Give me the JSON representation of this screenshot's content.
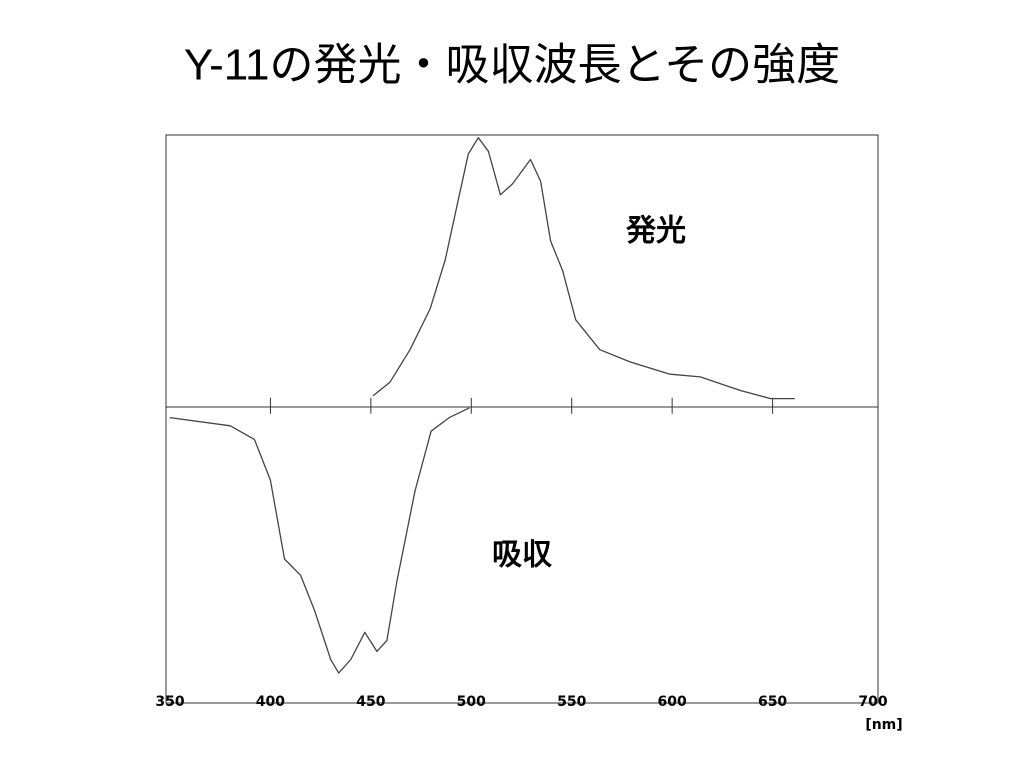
{
  "chart_data": {
    "type": "line",
    "title": "Y-11の発光・吸収波長とその強度",
    "x_label": "[nm]",
    "xlim": [
      350,
      700
    ],
    "xticks": [
      350,
      400,
      450,
      500,
      550,
      600,
      650,
      700
    ],
    "ylim": [
      -1.09,
      1
    ],
    "series": [
      {
        "name": "発光",
        "color": "#444444",
        "x": [
          451,
          459.5,
          469.5,
          479.5,
          487,
          493.5,
          498.5,
          503.5,
          508.5,
          514.5,
          520.5,
          529.5,
          534.5,
          539.5,
          545.5,
          552,
          564,
          579,
          599,
          614,
          634,
          649,
          661
        ],
        "values": [
          0.04,
          0.09,
          0.21,
          0.36,
          0.54,
          0.76,
          0.93,
          0.99,
          0.94,
          0.78,
          0.82,
          0.91,
          0.83,
          0.61,
          0.5,
          0.32,
          0.21,
          0.165,
          0.12,
          0.11,
          0.06,
          0.03,
          0.03
        ]
      },
      {
        "name": "吸収",
        "color": "#444444",
        "x": [
          350,
          380,
          392,
          400,
          407,
          415,
          422,
          430,
          434,
          440,
          447,
          453,
          458,
          463,
          472,
          480,
          489,
          499
        ],
        "values": [
          -0.04,
          -0.07,
          -0.12,
          -0.27,
          -0.56,
          -0.62,
          -0.75,
          -0.93,
          -0.98,
          -0.93,
          -0.83,
          -0.9,
          -0.86,
          -0.64,
          -0.31,
          -0.09,
          -0.04,
          -0.004
        ]
      }
    ]
  }
}
